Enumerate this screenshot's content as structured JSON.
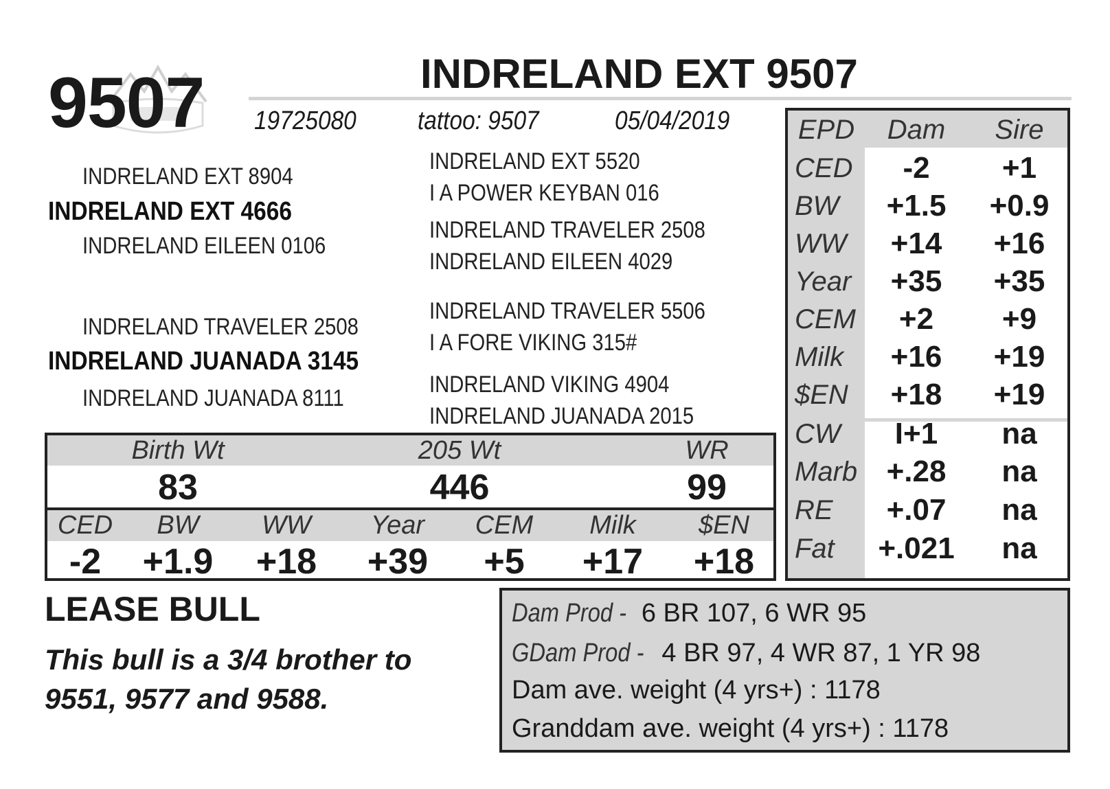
{
  "header": {
    "lot_number": "9507",
    "animal_name": "INDRELAND EXT 9507",
    "registration": "19725080",
    "tattoo": "tattoo: 9507",
    "birth_date": "05/04/2019"
  },
  "pedigree": {
    "sire": "INDRELAND EXT 4666",
    "sire_sire": "INDRELAND EXT 8904",
    "sire_dam": "INDRELAND EILEEN 0106",
    "dam": "INDRELAND JUANADA 3145",
    "dam_sire": "INDRELAND TRAVELER 2508",
    "dam_dam": "INDRELAND JUANADA 8111",
    "ss_sire": "INDRELAND EXT 5520",
    "ss_dam": "I A POWER KEYBAN 016",
    "sd_sire": "INDRELAND TRAVELER 2508",
    "sd_dam": "INDRELAND EILEEN 4029",
    "ds_sire": "INDRELAND TRAVELER 5506",
    "ds_dam": "I A FORE VIKING 315#",
    "dd_sire": "INDRELAND VIKING 4904",
    "dd_dam": "INDRELAND JUANADA 2015"
  },
  "performance": {
    "labels": [
      "Birth Wt",
      "205 Wt",
      "WR"
    ],
    "values": [
      "83",
      "446",
      "99"
    ]
  },
  "epds": {
    "labels": [
      "CED",
      "BW",
      "WW",
      "Year",
      "CEM",
      "Milk",
      "$EN"
    ],
    "values": [
      "-2",
      "+1.9",
      "+18",
      "+39",
      "+5",
      "+17",
      "+18"
    ]
  },
  "epd_table": {
    "headers": [
      "EPD",
      "Dam",
      "Sire"
    ],
    "rows": [
      {
        "label": "CED",
        "dam": "-2",
        "sire": "+1"
      },
      {
        "label": "BW",
        "dam": "+1.5",
        "sire": "+0.9"
      },
      {
        "label": "WW",
        "dam": "+14",
        "sire": "+16"
      },
      {
        "label": "Year",
        "dam": "+35",
        "sire": "+35"
      },
      {
        "label": "CEM",
        "dam": "+2",
        "sire": "+9"
      },
      {
        "label": "Milk",
        "dam": "+16",
        "sire": "+19"
      },
      {
        "label": "$EN",
        "dam": "+18",
        "sire": "+19"
      },
      {
        "label": "CW",
        "dam": "I+1",
        "sire": "na"
      },
      {
        "label": "Marb",
        "dam": "+.28",
        "sire": "na"
      },
      {
        "label": "RE",
        "dam": "+.07",
        "sire": "na"
      },
      {
        "label": "Fat",
        "dam": "+.021",
        "sire": "na"
      }
    ]
  },
  "notes": {
    "lease": "LEASE BULL",
    "comment": "This bull is a 3/4 brother to 9551, 9577 and 9588."
  },
  "production": {
    "dam_prod_label": "Dam Prod -",
    "dam_prod_value": " 6 BR 107, 6 WR 95",
    "gdam_prod_label": "GDam Prod -",
    "gdam_prod_value": " 4 BR 97, 4 WR 87, 1 YR 98",
    "dam_weight": "Dam ave. weight (4 yrs+) : 1178",
    "granddam_weight": "Granddam ave. weight (4 yrs+) : 1178"
  },
  "colors": {
    "shade": "#d6d6d6",
    "text": "#1a1a1a",
    "border": "#222222"
  }
}
